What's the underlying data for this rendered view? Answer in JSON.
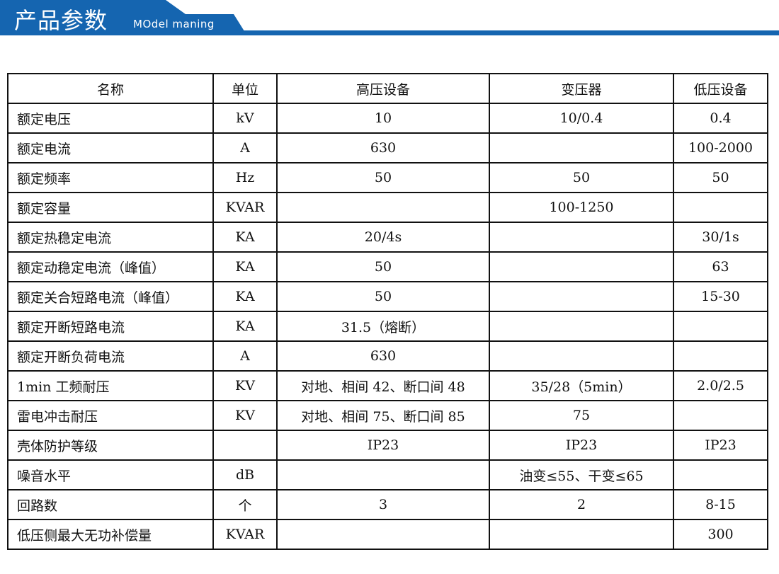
{
  "header": {
    "title": "产品参数",
    "subtitle": "MOdel maning",
    "color": "#1565b0"
  },
  "table": {
    "columns": [
      "名称",
      "单位",
      "高压设备",
      "变压器",
      "低压设备"
    ],
    "rows": [
      [
        "额定电压",
        "kV",
        "10",
        "10/0.4",
        "0.4"
      ],
      [
        "额定电流",
        "A",
        "630",
        "",
        "100-2000"
      ],
      [
        "额定频率",
        "Hz",
        "50",
        "50",
        "50"
      ],
      [
        "额定容量",
        "KVAR",
        "",
        "100-1250",
        ""
      ],
      [
        "额定热稳定电流",
        "KA",
        "20/4s",
        "",
        "30/1s"
      ],
      [
        "额定动稳定电流（峰值）",
        "KA",
        "50",
        "",
        "63"
      ],
      [
        "额定关合短路电流（峰值）",
        "KA",
        "50",
        "",
        "15-30"
      ],
      [
        "额定开断短路电流",
        "KA",
        "31.5（熔断）",
        "",
        ""
      ],
      [
        "额定开断负荷电流",
        "A",
        "630",
        "",
        ""
      ],
      [
        "1min 工频耐压",
        "KV",
        "对地、相间 42、断口间 48",
        "35/28（5min）",
        "2.0/2.5"
      ],
      [
        "雷电冲击耐压",
        "KV",
        "对地、相间 75、断口间 85",
        "75",
        ""
      ],
      [
        "壳体防护等级",
        "",
        "IP23",
        "IP23",
        "IP23"
      ],
      [
        "噪音水平",
        "dB",
        "",
        "油变≤55、干变≤65",
        ""
      ],
      [
        "回路数",
        "个",
        "3",
        "2",
        "8-15"
      ],
      [
        "低压侧最大无功补偿量",
        "KVAR",
        "",
        "",
        "300"
      ]
    ]
  }
}
